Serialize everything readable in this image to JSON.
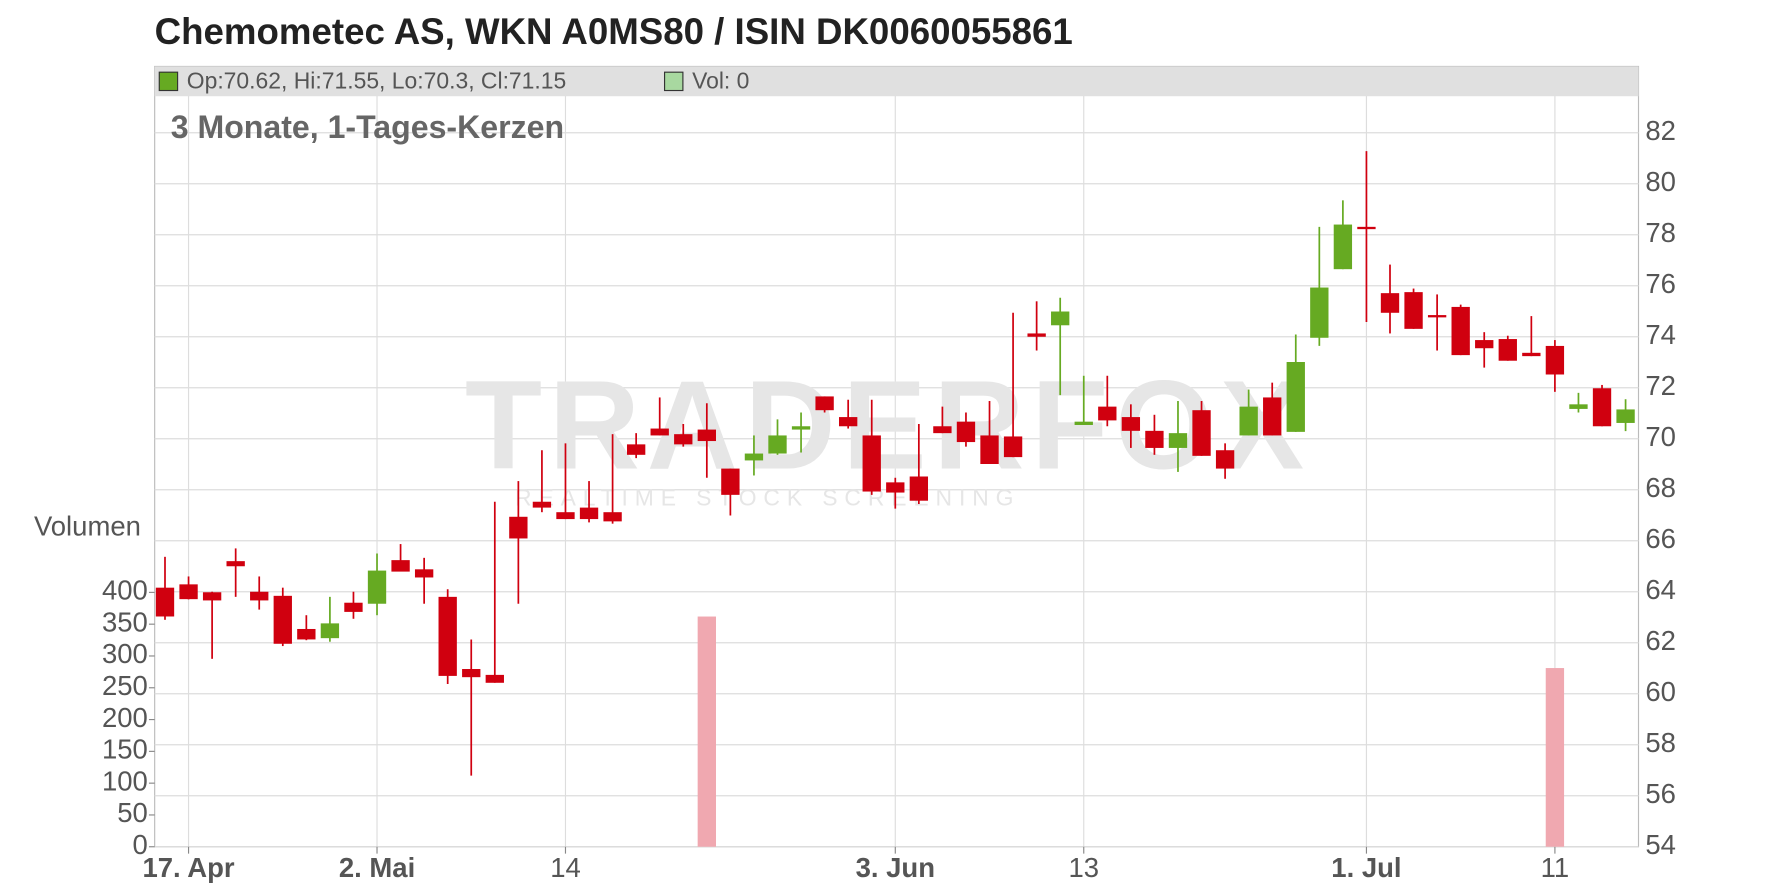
{
  "chart_data": {
    "type": "candlestick",
    "title": "Chemometec AS, WKN A0MS80 / ISIN DK0060055861",
    "subtitle": "3 Monate, 1-Tages-Kerzen",
    "legend": [
      "Op:70.62, Hi:71.55, Lo:70.3, Cl:71.15",
      "Vol: 0"
    ],
    "volume_label": "Volumen",
    "watermark": [
      "TRADERFOX",
      "REALTIME STOCK SCREENING"
    ],
    "categories": [
      null,
      "17. Apr",
      null,
      null,
      null,
      null,
      null,
      null,
      null,
      "2. Mai",
      null,
      null,
      null,
      null,
      null,
      null,
      null,
      "14",
      null,
      null,
      null,
      null,
      null,
      null,
      null,
      null,
      null,
      null,
      null,
      null,
      null,
      "3. Jun",
      null,
      null,
      null,
      null,
      null,
      null,
      null,
      "13",
      null,
      null,
      null,
      null,
      null,
      null,
      null,
      null,
      null,
      null,
      null,
      "1. Jul",
      null,
      null,
      null,
      null,
      null,
      null,
      null,
      "11",
      null,
      null,
      null
    ],
    "open": [
      64.16,
      64.29,
      63.98,
      65.2,
      64.0,
      63.84,
      62.54,
      62.18,
      63.57,
      63.53,
      65.24,
      64.88,
      63.8,
      60.97,
      60.74,
      66.94,
      67.53,
      67.12,
      67.3,
      67.12,
      69.78,
      70.4,
      70.18,
      70.36,
      68.83,
      69.15,
      69.42,
      70.36,
      71.66,
      70.85,
      70.13,
      68.29,
      68.52,
      70.49,
      70.67,
      70.13,
      70.09,
      74.13,
      74.45,
      70.54,
      71.26,
      70.85,
      70.31,
      69.64,
      71.12,
      69.55,
      70.13,
      71.62,
      70.27,
      73.96,
      76.65,
      78.31,
      75.71,
      75.75,
      74.85,
      75.17,
      73.87,
      73.91,
      73.37,
      73.64,
      71.17,
      71.98,
      70.62
    ],
    "high": [
      65.37,
      64.6,
      64.0,
      65.7,
      64.6,
      64.16,
      63.08,
      63.8,
      64.0,
      65.5,
      65.87,
      65.33,
      64.1,
      62.13,
      67.53,
      68.34,
      69.55,
      69.82,
      68.34,
      70.18,
      70.22,
      71.62,
      70.58,
      71.39,
      68.83,
      70.13,
      70.76,
      71.03,
      71.66,
      71.53,
      71.53,
      68.47,
      70.58,
      71.26,
      71.03,
      71.48,
      74.94,
      75.39,
      75.53,
      72.47,
      72.47,
      71.35,
      70.94,
      71.48,
      71.48,
      69.82,
      71.93,
      72.2,
      74.09,
      78.31,
      79.35,
      81.28,
      76.83,
      75.89,
      75.66,
      75.26,
      74.18,
      74.04,
      74.81,
      73.87,
      71.8,
      72.11,
      71.55
    ],
    "low": [
      62.9,
      63.7,
      61.37,
      63.8,
      63.3,
      61.87,
      62.1,
      62.04,
      62.94,
      63.08,
      64.8,
      63.53,
      60.38,
      56.79,
      60.43,
      63.53,
      67.12,
      66.85,
      66.72,
      66.67,
      69.24,
      70.13,
      69.69,
      68.47,
      66.99,
      68.56,
      69.37,
      69.46,
      71.03,
      70.4,
      67.8,
      67.26,
      67.44,
      70.22,
      69.69,
      69.01,
      69.28,
      73.46,
      71.71,
      70.54,
      70.49,
      69.64,
      69.37,
      68.7,
      69.33,
      68.43,
      70.13,
      70.13,
      70.27,
      73.64,
      76.65,
      74.58,
      74.13,
      74.31,
      73.46,
      73.28,
      72.79,
      73.06,
      73.24,
      71.84,
      71.03,
      70.49,
      70.3
    ],
    "close": [
      63.03,
      63.71,
      63.66,
      65.0,
      63.66,
      61.96,
      62.13,
      62.76,
      63.21,
      64.83,
      64.79,
      64.56,
      60.7,
      60.65,
      60.43,
      66.09,
      67.3,
      66.85,
      66.85,
      66.76,
      69.37,
      70.13,
      69.78,
      69.91,
      67.8,
      69.42,
      70.13,
      70.49,
      71.12,
      70.49,
      67.93,
      67.89,
      67.57,
      70.22,
      69.87,
      69.01,
      69.28,
      74.0,
      74.99,
      70.67,
      70.72,
      70.31,
      69.64,
      70.22,
      69.33,
      68.83,
      71.26,
      70.13,
      73.01,
      75.93,
      78.4,
      78.22,
      74.94,
      74.31,
      74.76,
      73.28,
      73.55,
      73.06,
      73.24,
      72.52,
      71.35,
      70.49,
      71.15
    ],
    "volume": [
      0,
      0,
      0,
      0,
      0,
      0,
      0,
      0,
      0,
      0,
      0,
      0,
      0,
      0,
      0,
      0,
      0,
      0,
      0,
      0,
      0,
      0,
      0,
      362,
      0,
      0,
      0,
      0,
      0,
      0,
      0,
      0,
      0,
      0,
      0,
      0,
      0,
      0,
      0,
      0,
      0,
      0,
      0,
      0,
      0,
      0,
      0,
      0,
      0,
      0,
      0,
      0,
      0,
      0,
      0,
      0,
      0,
      0,
      0,
      281,
      0,
      0,
      0
    ],
    "up_color": "#66aa22",
    "down_color": "#d0000f",
    "volume_color": "#f0a8b0",
    "ylim": [
      54,
      84.6
    ],
    "yticks": [
      54,
      56,
      58,
      60,
      62,
      64,
      66,
      68,
      70,
      72,
      74,
      76,
      78,
      80,
      82
    ],
    "y2lim": [
      0,
      1227
    ],
    "y2ticks": [
      0,
      50,
      100,
      150,
      200,
      250,
      300,
      350,
      400
    ],
    "grid": true
  }
}
